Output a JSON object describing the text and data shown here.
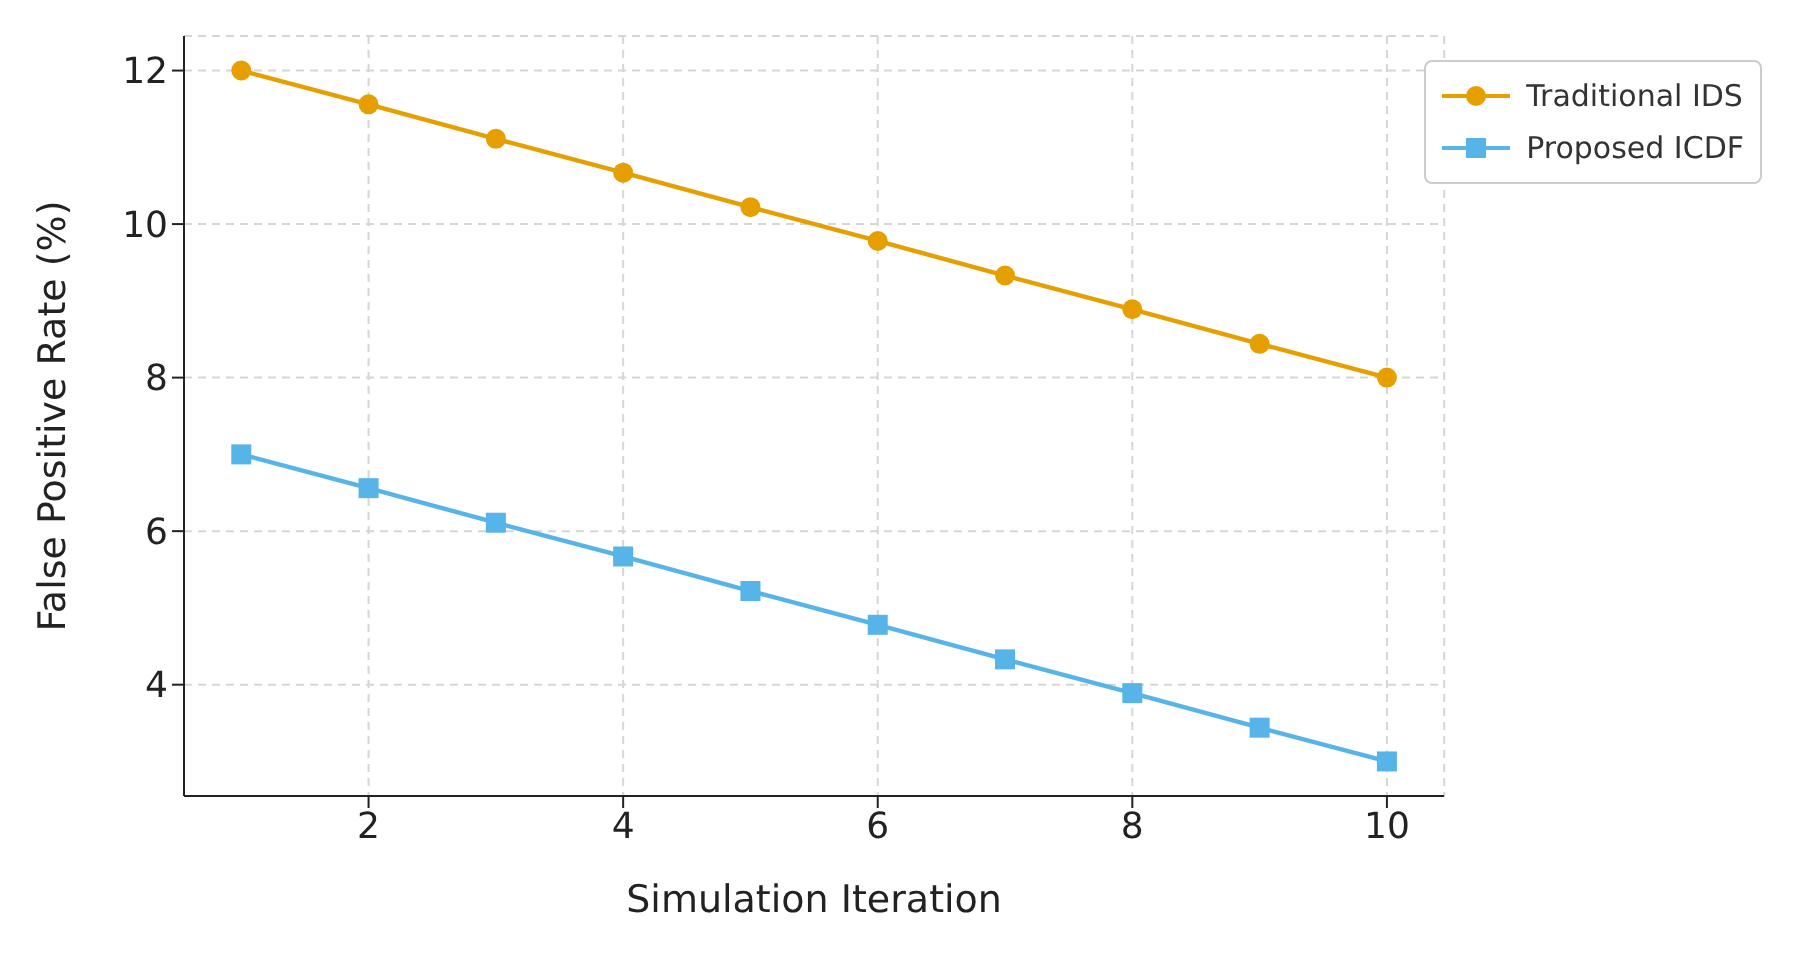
{
  "chart_data": {
    "type": "line",
    "xlabel": "Simulation Iteration",
    "ylabel": "False Positive Rate (%)",
    "x": [
      1,
      2,
      3,
      4,
      5,
      6,
      7,
      8,
      9,
      10
    ],
    "series": [
      {
        "name": "Traditional IDS",
        "color": "#e69f00",
        "marker": "circle",
        "values": [
          12,
          11.56,
          11.11,
          10.67,
          10.22,
          9.78,
          9.33,
          8.89,
          8.44,
          8
        ]
      },
      {
        "name": "Proposed ICDF",
        "color": "#56b4e9",
        "marker": "square",
        "values": [
          7,
          6.56,
          6.11,
          5.67,
          5.22,
          4.78,
          4.33,
          3.89,
          3.44,
          3
        ]
      }
    ],
    "xlim": [
      0.55,
      10.45
    ],
    "xticks": [
      2,
      4,
      6,
      8,
      10
    ],
    "ylim": [
      2.55,
      12.45
    ],
    "yticks": [
      4,
      6,
      8,
      10,
      12
    ],
    "grid": true,
    "legend": "top right",
    "line_style": "solid"
  }
}
